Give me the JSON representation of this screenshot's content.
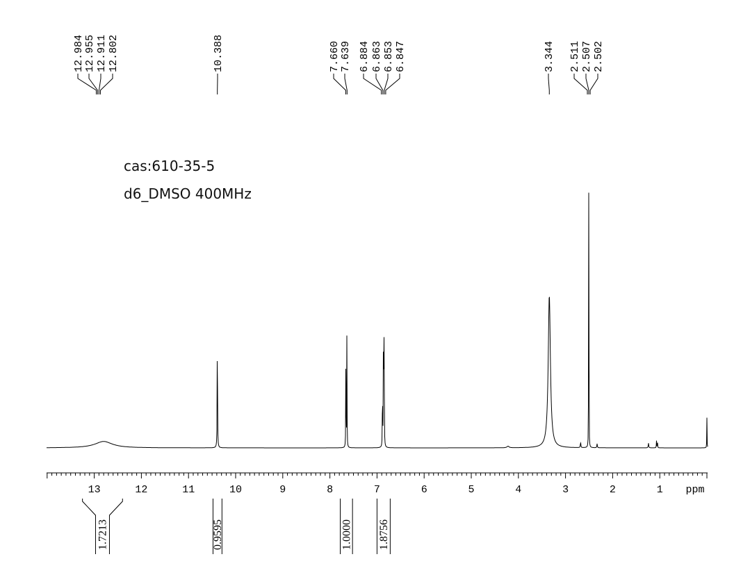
{
  "annotations": {
    "compound": "cas:610-35-5",
    "conditions": "d6_DMSO 400MHz"
  },
  "chart_data": {
    "type": "line",
    "title": "",
    "xlabel": "ppm",
    "ylabel": "",
    "xlim": [
      14.0,
      0.0
    ],
    "x_reversed": true,
    "ylim": [
      0,
      1.0
    ],
    "grid": false,
    "legend": "none",
    "x_ticks": [
      {
        "value": 13,
        "label": "13"
      },
      {
        "value": 12,
        "label": "12"
      },
      {
        "value": 11,
        "label": "11"
      },
      {
        "value": 10,
        "label": "10"
      },
      {
        "value": 9,
        "label": "9"
      },
      {
        "value": 8,
        "label": "8"
      },
      {
        "value": 7,
        "label": "7"
      },
      {
        "value": 6,
        "label": "6"
      },
      {
        "value": 5,
        "label": "5"
      },
      {
        "value": 4,
        "label": "4"
      },
      {
        "value": 3,
        "label": "3"
      },
      {
        "value": 2,
        "label": "2"
      },
      {
        "value": 1,
        "label": "1"
      }
    ],
    "peaks": [
      {
        "shift": 12.8,
        "height": 0.016,
        "width": 0.45
      },
      {
        "shift": 10.388,
        "height": 0.325,
        "width": 0.008
      },
      {
        "shift": 7.66,
        "height": 0.298,
        "width": 0.006
      },
      {
        "shift": 7.639,
        "height": 0.31,
        "width": 0.006
      },
      {
        "shift": 6.884,
        "height": 0.205,
        "width": 0.006
      },
      {
        "shift": 6.863,
        "height": 0.4,
        "width": 0.006
      },
      {
        "shift": 6.853,
        "height": 0.255,
        "width": 0.006
      },
      {
        "shift": 6.847,
        "height": 0.2,
        "width": 0.006
      },
      {
        "shift": 4.22,
        "height": 0.004,
        "width": 0.05
      },
      {
        "shift": 3.344,
        "height": 0.38,
        "width": 0.055
      },
      {
        "shift": 2.68,
        "height": 0.014,
        "width": 0.012
      },
      {
        "shift": 2.511,
        "height": 0.28,
        "width": 0.004
      },
      {
        "shift": 2.507,
        "height": 0.55,
        "width": 0.004
      },
      {
        "shift": 2.502,
        "height": 0.3,
        "width": 0.004
      },
      {
        "shift": 2.33,
        "height": 0.01,
        "width": 0.012
      },
      {
        "shift": 1.24,
        "height": 0.012,
        "width": 0.012
      },
      {
        "shift": 1.07,
        "height": 0.018,
        "width": 0.007
      },
      {
        "shift": 1.05,
        "height": 0.02,
        "width": 0.007
      },
      {
        "shift": 0.0,
        "height": 0.075,
        "width": 0.006
      }
    ],
    "peak_labels": [
      {
        "label": "12.984",
        "shift": 12.984,
        "group": "A"
      },
      {
        "label": "12.955",
        "shift": 12.955,
        "group": "A"
      },
      {
        "label": "12.911",
        "shift": 12.911,
        "group": "A"
      },
      {
        "label": "12.802",
        "shift": 12.802,
        "group": "A"
      },
      {
        "label": "10.388",
        "shift": 10.388,
        "group": "B"
      },
      {
        "label": "7.660",
        "shift": 7.66,
        "group": "C"
      },
      {
        "label": "7.639",
        "shift": 7.639,
        "group": "C"
      },
      {
        "label": "6.884",
        "shift": 6.884,
        "group": "D"
      },
      {
        "label": "6.863",
        "shift": 6.863,
        "group": "D"
      },
      {
        "label": "6.853",
        "shift": 6.853,
        "group": "D"
      },
      {
        "label": "6.847",
        "shift": 6.847,
        "group": "D"
      },
      {
        "label": "3.344",
        "shift": 3.344,
        "group": "E"
      },
      {
        "label": "2.511",
        "shift": 2.511,
        "group": "F"
      },
      {
        "label": "2.507",
        "shift": 2.507,
        "group": "F"
      },
      {
        "label": "2.502",
        "shift": 2.502,
        "group": "F"
      }
    ],
    "integrals": [
      {
        "value": "1.7213",
        "from": 13.25,
        "to": 12.4
      },
      {
        "value": "0.9595",
        "from": 10.48,
        "to": 10.29
      },
      {
        "value": "1.0000",
        "from": 7.78,
        "to": 7.52
      },
      {
        "value": "1.8756",
        "from": 7.0,
        "to": 6.72
      }
    ]
  }
}
